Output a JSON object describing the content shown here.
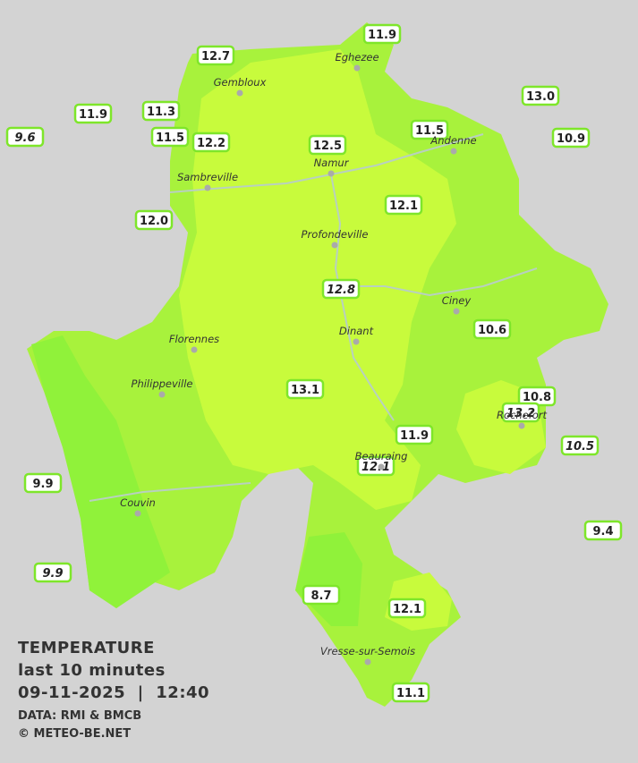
{
  "towns": [
    "Eghezee",
    "Gembloux",
    "Andenne",
    "Namur",
    "Sambreville",
    "Profondeville",
    "Ciney",
    "Dinant",
    "Florennes",
    "Philippeville",
    "Rochefort",
    "Beauraing",
    "Couvin",
    "Vresse-sur-Semois"
  ],
  "stations": [
    {
      "value": "12.7",
      "italic": false
    },
    {
      "value": "11.9",
      "italic": false
    },
    {
      "value": "13.0",
      "italic": false
    },
    {
      "value": "11.9",
      "italic": false
    },
    {
      "value": "11.3",
      "italic": false
    },
    {
      "value": "9.6",
      "italic": true
    },
    {
      "value": "11.5",
      "italic": false
    },
    {
      "value": "12.2",
      "italic": false
    },
    {
      "value": "12.5",
      "italic": false
    },
    {
      "value": "11.5",
      "italic": false
    },
    {
      "value": "10.9",
      "italic": false
    },
    {
      "value": "12.0",
      "italic": false
    },
    {
      "value": "12.1",
      "italic": false
    },
    {
      "value": "12.8",
      "italic": true
    },
    {
      "value": "10.6",
      "italic": false
    },
    {
      "value": "13.1",
      "italic": false
    },
    {
      "value": "10.8",
      "italic": false
    },
    {
      "value": "13.2",
      "italic": true
    },
    {
      "value": "10.5",
      "italic": true
    },
    {
      "value": "11.9",
      "italic": false
    },
    {
      "value": "12.1",
      "italic": true
    },
    {
      "value": "9.9",
      "italic": false
    },
    {
      "value": "9.9",
      "italic": true
    },
    {
      "value": "9.4",
      "italic": false
    },
    {
      "value": "8.7",
      "italic": false
    },
    {
      "value": "12.1",
      "italic": false
    },
    {
      "value": "11.1",
      "italic": false
    }
  ],
  "caption": {
    "title": "TEMPERATURE",
    "period": "last 10 minutes",
    "datetime": "09-11-2025  |  12:40",
    "source": "DATA: RMI & BMCB",
    "copyright": "© METEO-BE.NET"
  }
}
